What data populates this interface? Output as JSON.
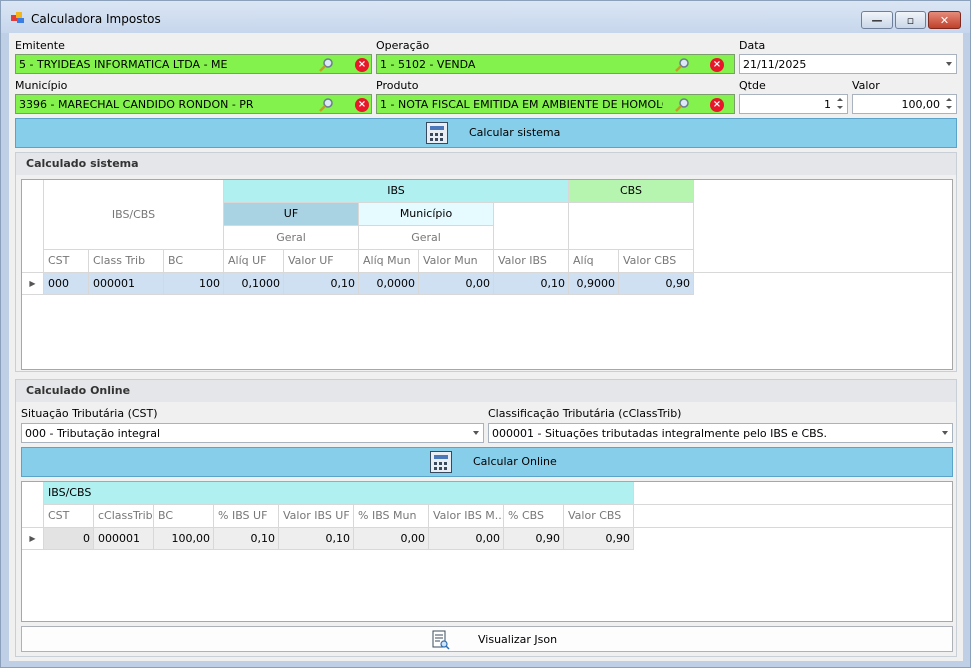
{
  "window": {
    "title": "Calculadora Impostos"
  },
  "emitente": {
    "label": "Emitente",
    "value": "5 - TRYIDEAS INFORMATICA LTDA - ME"
  },
  "operacao": {
    "label": "Operação",
    "value": "1 - 5102 - VENDA"
  },
  "data": {
    "label": "Data",
    "value": "21/11/2025"
  },
  "municipio": {
    "label": "Município",
    "value": "3396 - MARECHAL CANDIDO RONDON - PR"
  },
  "produto": {
    "label": "Produto",
    "value": "1 - NOTA FISCAL EMITIDA EM AMBIENTE DE HOMOLOG"
  },
  "qtde": {
    "label": "Qtde",
    "value": "1"
  },
  "valor": {
    "label": "Valor",
    "value": "100,00"
  },
  "calcular_sistema": {
    "label": "Calcular sistema"
  },
  "sistema": {
    "title": "Calculado sistema",
    "band_ibscbs": "IBS/CBS",
    "band_ibs": "IBS",
    "band_cbs": "CBS",
    "band_uf": "UF",
    "band_municipio": "Município",
    "band_geral_uf": "Geral",
    "band_geral_mun": "Geral",
    "columns": [
      "CST",
      "Class Trib",
      "BC",
      "Alíq UF",
      "Valor UF",
      "Alíq Mun",
      "Valor Mun",
      "Valor IBS",
      "Alíq",
      "Valor CBS"
    ],
    "row": [
      "000",
      "000001",
      "100",
      "0,1000",
      "0,10",
      "0,0000",
      "0,00",
      "0,10",
      "0,9000",
      "0,90"
    ]
  },
  "online": {
    "title": "Calculado Online",
    "cst_label": "Situação Tributária (CST)",
    "cst_value": "000 - Tributação integral",
    "class_label": "Classificação Tributária (cClassTrib)",
    "class_value": "000001 - Situações tributadas integralmente pelo IBS e CBS.",
    "button": "Calcular Online",
    "band_ibscbs": "IBS/CBS",
    "columns": [
      "CST",
      "cClassTrib",
      "BC",
      "% IBS UF",
      "Valor IBS UF",
      "% IBS Mun",
      "Valor IBS M...",
      "% CBS",
      "Valor CBS"
    ],
    "row": [
      "0",
      "000001",
      "100,00",
      "0,10",
      "0,10",
      "0,00",
      "0,00",
      "0,90",
      "0,90"
    ]
  },
  "json_button": {
    "label": "Visualizar Json"
  },
  "colors": {
    "lookup_bg": "#84f24c",
    "button_bg": "#87ceeb",
    "ibs_band": "#b0f0f0",
    "cbs_band": "#b6f5b0",
    "uf_band": "#a9d3e3",
    "mun_band": "#e6fbff"
  },
  "icons": [
    "app-icon",
    "search-icon",
    "clear-icon",
    "calculator-icon",
    "json-document-icon"
  ]
}
